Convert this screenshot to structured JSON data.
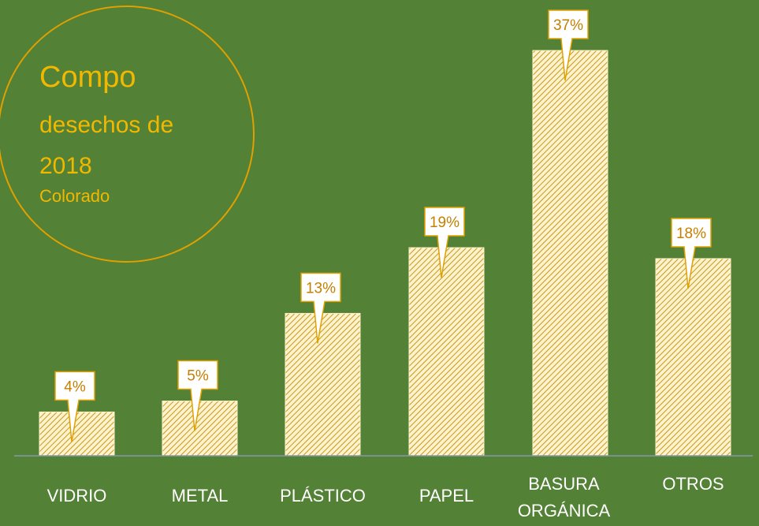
{
  "colors": {
    "background": "#538135",
    "bar_fill": "#fff2cc",
    "bar_hatch": "#c49a1a",
    "callout_border": "#e0a000",
    "callout_text": "#c47f00",
    "title": "#f2b800",
    "axis_line": "#8497b0"
  },
  "title": {
    "line1": "Compo",
    "line2": "desechos de",
    "line3": "2018",
    "line4": "Colorado"
  },
  "chart_data": {
    "type": "bar",
    "categories": [
      "VIDRIO",
      "METAL",
      "PLÁSTICO",
      "PAPEL",
      "BASURA ORGÁNICA",
      "OTROS"
    ],
    "values": [
      4,
      5,
      13,
      19,
      37,
      18
    ],
    "data_labels": [
      "4%",
      "5%",
      "13%",
      "19%",
      "37%",
      "18%"
    ],
    "unit": "%",
    "ylim": [
      0,
      37
    ],
    "grid": false,
    "legend": "none"
  }
}
